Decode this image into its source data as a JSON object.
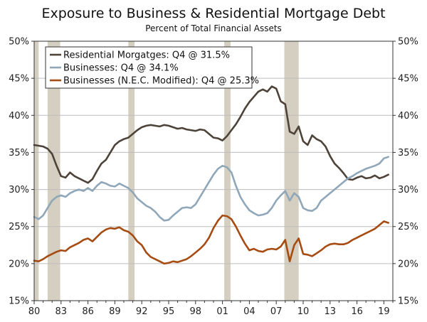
{
  "chart_data": {
    "type": "line",
    "title": "Exposure to Business & Residential Mortgage Debt",
    "subtitle": "Percent of Total Financial Assets",
    "xlabel": "",
    "ylabel": "",
    "xlim": [
      1980,
      2020
    ],
    "ylim": [
      15,
      50
    ],
    "x_tick_values": [
      1980,
      1983,
      1986,
      1989,
      1992,
      1995,
      1998,
      2001,
      2004,
      2007,
      2010,
      2013,
      2016,
      2019
    ],
    "x_tick_labels": [
      "80",
      "83",
      "86",
      "89",
      "92",
      "95",
      "98",
      "01",
      "04",
      "07",
      "10",
      "13",
      "16",
      "19"
    ],
    "y_tick_values": [
      15,
      20,
      25,
      30,
      35,
      40,
      45,
      50
    ],
    "y_tick_labels": [
      "15%",
      "20%",
      "25%",
      "30%",
      "35%",
      "40%",
      "45%",
      "50%"
    ],
    "legend_position": "top-left",
    "recessions": [
      [
        1980.0,
        1980.5
      ],
      [
        1981.5,
        1982.9
      ],
      [
        1990.5,
        1991.2
      ],
      [
        2001.2,
        2001.9
      ],
      [
        2007.9,
        2009.5
      ]
    ],
    "series": [
      {
        "name": "Residential Morgatges: Q4 @ 31.5%",
        "color": "#4e4339",
        "x": [
          1980.0,
          1980.5,
          1981.0,
          1981.5,
          1982.0,
          1982.5,
          1983.0,
          1983.5,
          1984.0,
          1984.5,
          1985.0,
          1985.5,
          1986.0,
          1986.5,
          1987.0,
          1987.5,
          1988.0,
          1988.5,
          1989.0,
          1989.5,
          1990.0,
          1990.5,
          1991.0,
          1991.5,
          1992.0,
          1992.5,
          1993.0,
          1993.5,
          1994.0,
          1994.5,
          1995.0,
          1995.5,
          1996.0,
          1996.5,
          1997.0,
          1997.5,
          1998.0,
          1998.5,
          1999.0,
          1999.5,
          2000.0,
          2000.5,
          2001.0,
          2001.5,
          2002.0,
          2002.5,
          2003.0,
          2003.5,
          2004.0,
          2004.5,
          2005.0,
          2005.5,
          2006.0,
          2006.5,
          2007.0,
          2007.5,
          2008.0,
          2008.5,
          2009.0,
          2009.5,
          2010.0,
          2010.5,
          2011.0,
          2011.5,
          2012.0,
          2012.5,
          2013.0,
          2013.5,
          2014.0,
          2014.5,
          2015.0,
          2015.5,
          2016.0,
          2016.5,
          2017.0,
          2017.5,
          2018.0,
          2018.5,
          2019.0,
          2019.5
        ],
        "values": [
          36.0,
          35.9,
          35.8,
          35.5,
          34.8,
          33.2,
          31.8,
          31.6,
          32.3,
          31.8,
          31.5,
          31.2,
          30.9,
          31.4,
          32.5,
          33.5,
          34.0,
          35.0,
          36.0,
          36.5,
          36.8,
          37.0,
          37.5,
          38.0,
          38.4,
          38.6,
          38.7,
          38.6,
          38.5,
          38.7,
          38.6,
          38.4,
          38.2,
          38.3,
          38.1,
          38.0,
          37.9,
          38.1,
          38.0,
          37.5,
          37.0,
          36.9,
          36.6,
          37.2,
          38.0,
          38.8,
          39.8,
          40.9,
          41.8,
          42.5,
          43.2,
          43.5,
          43.2,
          43.9,
          43.6,
          41.9,
          41.5,
          37.8,
          37.5,
          38.5,
          36.5,
          36.0,
          37.3,
          36.8,
          36.5,
          35.8,
          34.5,
          33.5,
          32.9,
          32.2,
          31.4,
          31.3,
          31.6,
          31.8,
          31.5,
          31.6,
          31.9,
          31.5,
          31.7,
          32.0
        ]
      },
      {
        "name": "Businesses: Q4 @ 34.1%",
        "color": "#8fa7b9",
        "x": [
          1980.0,
          1980.5,
          1981.0,
          1981.5,
          1982.0,
          1982.5,
          1983.0,
          1983.5,
          1984.0,
          1984.5,
          1985.0,
          1985.5,
          1986.0,
          1986.5,
          1987.0,
          1987.5,
          1988.0,
          1988.5,
          1989.0,
          1989.5,
          1990.0,
          1990.5,
          1991.0,
          1991.5,
          1992.0,
          1992.5,
          1993.0,
          1993.5,
          1994.0,
          1994.5,
          1995.0,
          1995.5,
          1996.0,
          1996.5,
          1997.0,
          1997.5,
          1998.0,
          1998.5,
          1999.0,
          1999.5,
          2000.0,
          2000.5,
          2001.0,
          2001.5,
          2002.0,
          2002.5,
          2003.0,
          2003.5,
          2004.0,
          2004.5,
          2005.0,
          2005.5,
          2006.0,
          2006.5,
          2007.0,
          2007.5,
          2008.0,
          2008.5,
          2009.0,
          2009.5,
          2010.0,
          2010.5,
          2011.0,
          2011.5,
          2012.0,
          2012.5,
          2013.0,
          2013.5,
          2014.0,
          2014.5,
          2015.0,
          2015.5,
          2016.0,
          2016.5,
          2017.0,
          2017.5,
          2018.0,
          2018.5,
          2019.0,
          2019.5
        ],
        "values": [
          26.3,
          26.0,
          26.5,
          27.5,
          28.5,
          29.0,
          29.2,
          29.0,
          29.5,
          29.8,
          30.0,
          29.8,
          30.2,
          29.8,
          30.5,
          31.0,
          30.8,
          30.5,
          30.4,
          30.8,
          30.5,
          30.2,
          29.6,
          28.8,
          28.3,
          27.8,
          27.5,
          27.0,
          26.3,
          25.8,
          25.9,
          26.5,
          27.0,
          27.5,
          27.6,
          27.5,
          28.0,
          29.0,
          30.0,
          31.0,
          32.0,
          32.8,
          33.2,
          33.0,
          32.3,
          30.5,
          29.0,
          28.0,
          27.2,
          26.8,
          26.5,
          26.6,
          26.8,
          27.5,
          28.5,
          29.2,
          29.8,
          28.5,
          29.5,
          29.0,
          27.5,
          27.2,
          27.1,
          27.5,
          28.5,
          29.0,
          29.5,
          30.0,
          30.5,
          31.0,
          31.5,
          31.8,
          32.2,
          32.5,
          32.8,
          33.0,
          33.2,
          33.5,
          34.2,
          34.4
        ]
      },
      {
        "name": "Businesses (N.E.C. Modified): Q4 @ 25.3%",
        "color": "#a64c12",
        "x": [
          1980.0,
          1980.5,
          1981.0,
          1981.5,
          1982.0,
          1982.5,
          1983.0,
          1983.5,
          1984.0,
          1984.5,
          1985.0,
          1985.5,
          1986.0,
          1986.5,
          1987.0,
          1987.5,
          1988.0,
          1988.5,
          1989.0,
          1989.5,
          1990.0,
          1990.5,
          1991.0,
          1991.5,
          1992.0,
          1992.5,
          1993.0,
          1993.5,
          1994.0,
          1994.5,
          1995.0,
          1995.5,
          1996.0,
          1996.5,
          1997.0,
          1997.5,
          1998.0,
          1998.5,
          1999.0,
          1999.5,
          2000.0,
          2000.5,
          2001.0,
          2001.5,
          2002.0,
          2002.5,
          2003.0,
          2003.5,
          2004.0,
          2004.5,
          2005.0,
          2005.5,
          2006.0,
          2006.5,
          2007.0,
          2007.5,
          2008.0,
          2008.5,
          2009.0,
          2009.5,
          2010.0,
          2010.5,
          2011.0,
          2011.5,
          2012.0,
          2012.5,
          2013.0,
          2013.5,
          2014.0,
          2014.5,
          2015.0,
          2015.5,
          2016.0,
          2016.5,
          2017.0,
          2017.5,
          2018.0,
          2018.5,
          2019.0,
          2019.5
        ],
        "values": [
          20.4,
          20.3,
          20.6,
          21.0,
          21.3,
          21.6,
          21.8,
          21.7,
          22.2,
          22.5,
          22.8,
          23.2,
          23.4,
          23.0,
          23.6,
          24.2,
          24.6,
          24.8,
          24.7,
          24.9,
          24.5,
          24.3,
          23.8,
          23.0,
          22.5,
          21.5,
          20.9,
          20.6,
          20.3,
          20.0,
          20.1,
          20.3,
          20.2,
          20.4,
          20.6,
          21.0,
          21.5,
          22.0,
          22.6,
          23.5,
          24.8,
          25.8,
          26.5,
          26.4,
          26.0,
          25.0,
          23.8,
          22.7,
          21.8,
          22.0,
          21.7,
          21.6,
          21.9,
          22.0,
          21.9,
          22.3,
          23.2,
          20.3,
          22.5,
          23.4,
          21.3,
          21.2,
          21.0,
          21.4,
          21.8,
          22.3,
          22.6,
          22.7,
          22.6,
          22.6,
          22.8,
          23.2,
          23.5,
          23.8,
          24.1,
          24.4,
          24.7,
          25.2,
          25.7,
          25.5
        ]
      }
    ]
  }
}
